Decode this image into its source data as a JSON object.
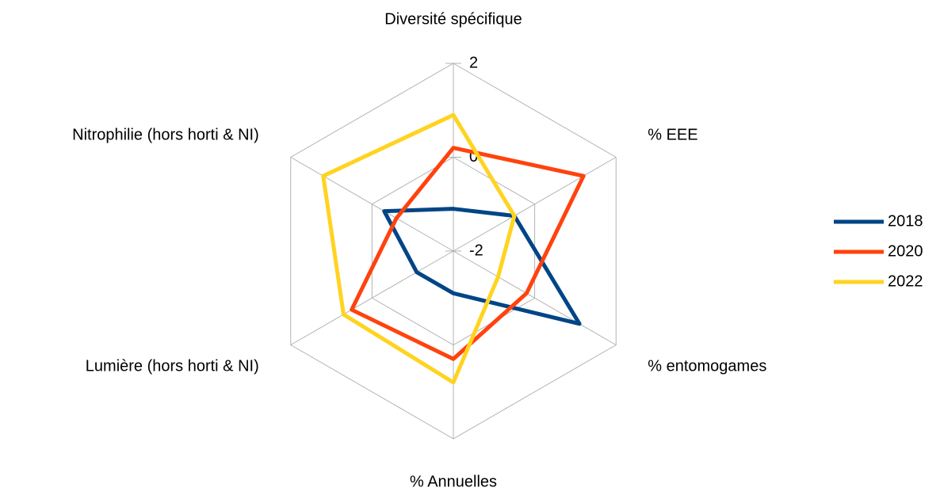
{
  "chart_data": {
    "type": "radar",
    "categories": [
      "Diversité spécifique",
      "% EEE",
      "% entomogames",
      "% Annuelles",
      "Lumière (hors horti & NI)",
      "Nitrophilie (hors horti & NI)"
    ],
    "ylim": [
      -2,
      2
    ],
    "yticks": [
      -2,
      0,
      2
    ],
    "grid": true,
    "legend": "right",
    "series": [
      {
        "name": "2018",
        "color": "#004586",
        "values": [
          -1.1,
          -0.5,
          1.1,
          -1.1,
          -1.1,
          -0.3
        ]
      },
      {
        "name": "2020",
        "color": "#ff420e",
        "values": [
          0.2,
          1.2,
          -0.2,
          0.3,
          0.5,
          -0.6
        ]
      },
      {
        "name": "2022",
        "color": "#ffd320",
        "values": [
          0.9,
          -0.5,
          -0.9,
          0.8,
          0.7,
          1.2
        ]
      }
    ]
  }
}
